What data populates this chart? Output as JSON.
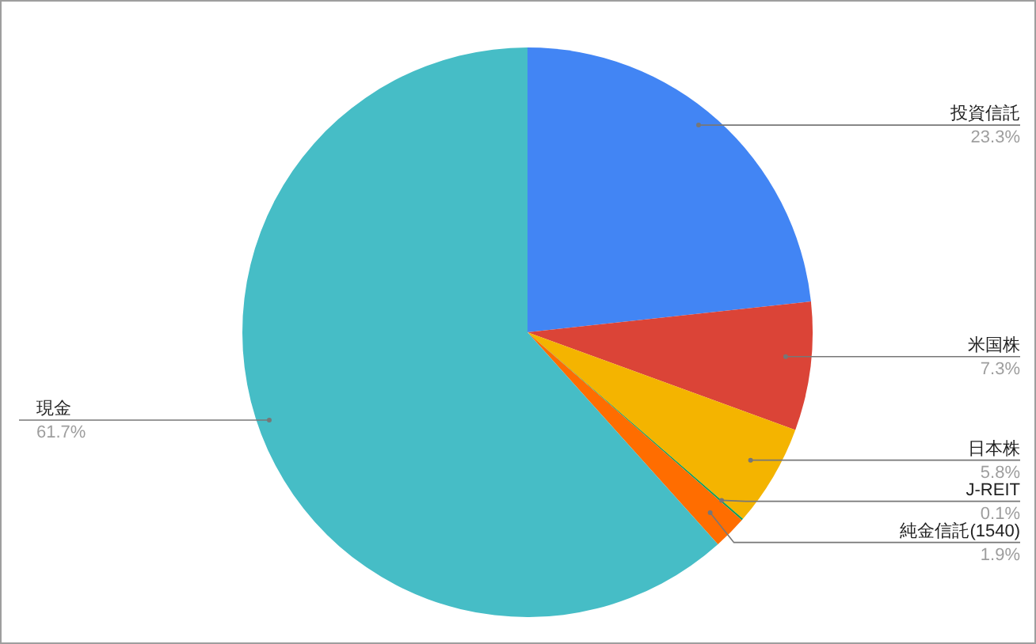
{
  "chart_data": {
    "type": "pie",
    "categories": [
      "投資信託",
      "米国株",
      "日本株",
      "J-REIT",
      "純金信託(1540)",
      "現金"
    ],
    "values": [
      23.3,
      7.3,
      5.8,
      0.1,
      1.9,
      61.7
    ],
    "colors": [
      "#4285f4",
      "#db4437",
      "#f4b400",
      "#0f9d58",
      "#ff6d00",
      "#46bdc6"
    ],
    "value_labels": [
      "23.3%",
      "7.3%",
      "5.8%",
      "0.1%",
      "1.9%",
      "61.7%"
    ]
  }
}
